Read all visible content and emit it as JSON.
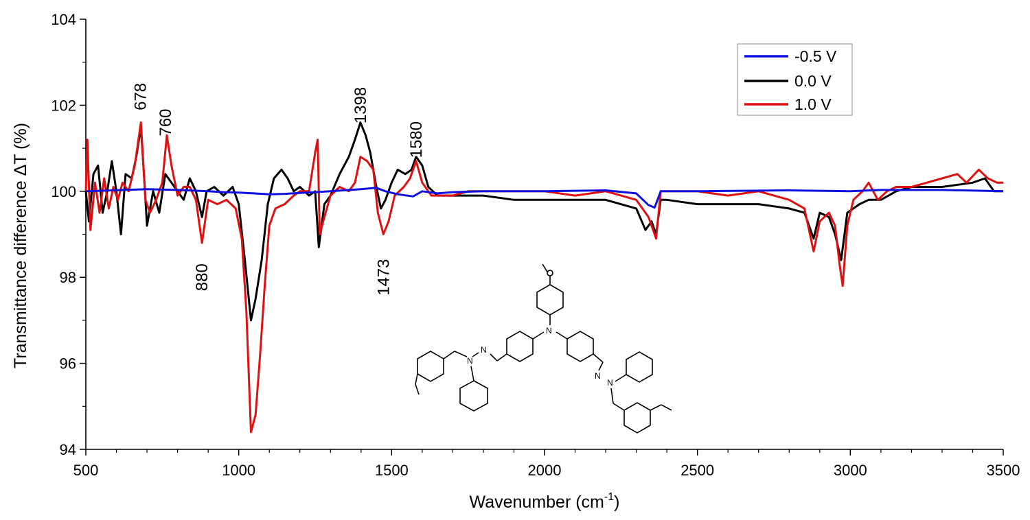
{
  "chart_data": {
    "type": "line",
    "xlabel": "Wavenumber (cm",
    "xlabel_sup": "-1",
    "xlabel_close": ")",
    "ylabel": "Transmittance difference  ΔT (%)",
    "xlim": [
      500,
      3500
    ],
    "ylim": [
      94,
      104
    ],
    "x_ticks": [
      500,
      1000,
      1500,
      2000,
      2500,
      3000,
      3500
    ],
    "y_ticks": [
      94,
      96,
      98,
      100,
      102,
      104
    ],
    "legend_position": "top-right",
    "series": [
      {
        "name": "-0.5 V",
        "color": "#1010e0",
        "points": [
          [
            500,
            100.0
          ],
          [
            700,
            100.05
          ],
          [
            800,
            100.03
          ],
          [
            900,
            100.0
          ],
          [
            950,
            99.98
          ],
          [
            1000,
            99.97
          ],
          [
            1050,
            99.95
          ],
          [
            1100,
            99.93
          ],
          [
            1150,
            99.94
          ],
          [
            1200,
            99.96
          ],
          [
            1250,
            99.98
          ],
          [
            1300,
            100.0
          ],
          [
            1400,
            100.05
          ],
          [
            1450,
            100.08
          ],
          [
            1480,
            100.0
          ],
          [
            1520,
            99.93
          ],
          [
            1570,
            99.88
          ],
          [
            1600,
            100.0
          ],
          [
            1650,
            99.95
          ],
          [
            1700,
            99.98
          ],
          [
            1800,
            100.0
          ],
          [
            2000,
            100.0
          ],
          [
            2200,
            100.02
          ],
          [
            2300,
            99.95
          ],
          [
            2340,
            99.68
          ],
          [
            2360,
            99.62
          ],
          [
            2380,
            100.0
          ],
          [
            2500,
            100.0
          ],
          [
            2800,
            100.02
          ],
          [
            3000,
            100.0
          ],
          [
            3100,
            100.03
          ],
          [
            3300,
            100.03
          ],
          [
            3500,
            100.0
          ]
        ]
      },
      {
        "name": "0.0 V",
        "color": "#000000",
        "points": [
          [
            500,
            100.0
          ],
          [
            510,
            99.3
          ],
          [
            525,
            100.4
          ],
          [
            540,
            100.6
          ],
          [
            555,
            99.5
          ],
          [
            570,
            100.0
          ],
          [
            585,
            100.7
          ],
          [
            600,
            100.0
          ],
          [
            615,
            99.0
          ],
          [
            630,
            100.4
          ],
          [
            650,
            100.3
          ],
          [
            665,
            100.8
          ],
          [
            680,
            101.5
          ],
          [
            690,
            100.4
          ],
          [
            700,
            99.2
          ],
          [
            720,
            100.0
          ],
          [
            740,
            99.5
          ],
          [
            760,
            100.4
          ],
          [
            780,
            100.2
          ],
          [
            800,
            100.0
          ],
          [
            820,
            99.8
          ],
          [
            840,
            100.3
          ],
          [
            860,
            100.0
          ],
          [
            880,
            99.4
          ],
          [
            895,
            100.0
          ],
          [
            920,
            100.1
          ],
          [
            950,
            99.9
          ],
          [
            980,
            100.1
          ],
          [
            1000,
            99.7
          ],
          [
            1020,
            98.4
          ],
          [
            1040,
            97.0
          ],
          [
            1055,
            97.5
          ],
          [
            1075,
            98.4
          ],
          [
            1095,
            99.7
          ],
          [
            1115,
            100.3
          ],
          [
            1140,
            100.5
          ],
          [
            1160,
            100.3
          ],
          [
            1180,
            100.0
          ],
          [
            1200,
            100.1
          ],
          [
            1230,
            99.9
          ],
          [
            1250,
            100.0
          ],
          [
            1262,
            98.7
          ],
          [
            1280,
            99.7
          ],
          [
            1300,
            99.9
          ],
          [
            1330,
            100.4
          ],
          [
            1360,
            100.8
          ],
          [
            1380,
            101.2
          ],
          [
            1398,
            101.6
          ],
          [
            1415,
            101.3
          ],
          [
            1430,
            100.9
          ],
          [
            1450,
            100.1
          ],
          [
            1465,
            99.6
          ],
          [
            1480,
            99.8
          ],
          [
            1500,
            100.2
          ],
          [
            1520,
            100.5
          ],
          [
            1545,
            100.4
          ],
          [
            1565,
            100.5
          ],
          [
            1580,
            100.8
          ],
          [
            1600,
            100.6
          ],
          [
            1620,
            100.1
          ],
          [
            1650,
            99.9
          ],
          [
            1700,
            99.9
          ],
          [
            1800,
            99.9
          ],
          [
            1900,
            99.8
          ],
          [
            2000,
            99.8
          ],
          [
            2100,
            99.8
          ],
          [
            2200,
            99.8
          ],
          [
            2300,
            99.6
          ],
          [
            2330,
            99.1
          ],
          [
            2350,
            99.3
          ],
          [
            2365,
            99.0
          ],
          [
            2380,
            99.8
          ],
          [
            2400,
            99.8
          ],
          [
            2500,
            99.7
          ],
          [
            2600,
            99.7
          ],
          [
            2700,
            99.7
          ],
          [
            2800,
            99.6
          ],
          [
            2850,
            99.5
          ],
          [
            2880,
            98.9
          ],
          [
            2900,
            99.5
          ],
          [
            2930,
            99.4
          ],
          [
            2950,
            99.0
          ],
          [
            2970,
            98.4
          ],
          [
            2990,
            99.5
          ],
          [
            3030,
            99.7
          ],
          [
            3060,
            99.8
          ],
          [
            3100,
            99.8
          ],
          [
            3150,
            100.0
          ],
          [
            3200,
            100.1
          ],
          [
            3300,
            100.1
          ],
          [
            3400,
            100.2
          ],
          [
            3440,
            100.3
          ],
          [
            3470,
            100.0
          ],
          [
            3500,
            100.0
          ]
        ]
      },
      {
        "name": "1.0 V",
        "color": "#e01010",
        "points": [
          [
            500,
            100.0
          ],
          [
            505,
            101.2
          ],
          [
            515,
            99.1
          ],
          [
            530,
            100.2
          ],
          [
            545,
            99.5
          ],
          [
            560,
            100.3
          ],
          [
            575,
            99.6
          ],
          [
            590,
            100.1
          ],
          [
            605,
            99.8
          ],
          [
            620,
            100.2
          ],
          [
            640,
            100.0
          ],
          [
            660,
            100.6
          ],
          [
            680,
            101.6
          ],
          [
            695,
            99.8
          ],
          [
            710,
            99.5
          ],
          [
            730,
            99.8
          ],
          [
            750,
            100.2
          ],
          [
            765,
            101.3
          ],
          [
            780,
            100.6
          ],
          [
            800,
            99.9
          ],
          [
            820,
            100.1
          ],
          [
            840,
            100.1
          ],
          [
            860,
            99.8
          ],
          [
            880,
            98.8
          ],
          [
            900,
            99.8
          ],
          [
            930,
            99.7
          ],
          [
            960,
            99.8
          ],
          [
            990,
            99.6
          ],
          [
            1010,
            98.9
          ],
          [
            1025,
            97.2
          ],
          [
            1040,
            94.4
          ],
          [
            1055,
            94.8
          ],
          [
            1070,
            96.2
          ],
          [
            1085,
            97.8
          ],
          [
            1100,
            99.2
          ],
          [
            1120,
            99.6
          ],
          [
            1150,
            99.7
          ],
          [
            1180,
            99.9
          ],
          [
            1200,
            100.0
          ],
          [
            1230,
            100.0
          ],
          [
            1250,
            100.9
          ],
          [
            1258,
            101.2
          ],
          [
            1265,
            99.0
          ],
          [
            1280,
            99.4
          ],
          [
            1300,
            99.9
          ],
          [
            1330,
            100.1
          ],
          [
            1360,
            100.0
          ],
          [
            1380,
            100.2
          ],
          [
            1398,
            100.8
          ],
          [
            1420,
            100.7
          ],
          [
            1440,
            100.5
          ],
          [
            1455,
            99.5
          ],
          [
            1473,
            99.0
          ],
          [
            1490,
            99.3
          ],
          [
            1510,
            99.9
          ],
          [
            1540,
            100.1
          ],
          [
            1560,
            100.3
          ],
          [
            1580,
            100.7
          ],
          [
            1600,
            100.2
          ],
          [
            1630,
            99.9
          ],
          [
            1660,
            99.9
          ],
          [
            1700,
            99.9
          ],
          [
            1750,
            100.0
          ],
          [
            1800,
            100.0
          ],
          [
            1900,
            100.0
          ],
          [
            2000,
            100.0
          ],
          [
            2100,
            99.9
          ],
          [
            2200,
            100.0
          ],
          [
            2300,
            99.8
          ],
          [
            2340,
            99.4
          ],
          [
            2350,
            99.2
          ],
          [
            2365,
            98.9
          ],
          [
            2380,
            100.0
          ],
          [
            2450,
            100.0
          ],
          [
            2500,
            100.0
          ],
          [
            2600,
            99.9
          ],
          [
            2700,
            100.0
          ],
          [
            2750,
            99.9
          ],
          [
            2800,
            99.8
          ],
          [
            2850,
            99.6
          ],
          [
            2880,
            98.6
          ],
          [
            2900,
            99.3
          ],
          [
            2930,
            99.5
          ],
          [
            2950,
            99.2
          ],
          [
            2965,
            98.3
          ],
          [
            2975,
            97.8
          ],
          [
            2990,
            99.2
          ],
          [
            3010,
            99.8
          ],
          [
            3040,
            100.0
          ],
          [
            3060,
            100.2
          ],
          [
            3090,
            99.8
          ],
          [
            3120,
            100.0
          ],
          [
            3150,
            100.1
          ],
          [
            3200,
            100.1
          ],
          [
            3250,
            100.2
          ],
          [
            3300,
            100.3
          ],
          [
            3350,
            100.4
          ],
          [
            3380,
            100.2
          ],
          [
            3420,
            100.5
          ],
          [
            3450,
            100.3
          ],
          [
            3480,
            100.2
          ],
          [
            3500,
            100.2
          ]
        ]
      }
    ],
    "annotations": [
      {
        "text": "678",
        "x": 678,
        "y": 102.2
      },
      {
        "text": "760",
        "x": 760,
        "y": 101.6
      },
      {
        "text": "880",
        "x": 880,
        "y": 98.0
      },
      {
        "text": "1398",
        "x": 1398,
        "y": 102.0
      },
      {
        "text": "1473",
        "x": 1473,
        "y": 98.0
      },
      {
        "text": "1580",
        "x": 1580,
        "y": 101.2
      }
    ]
  }
}
